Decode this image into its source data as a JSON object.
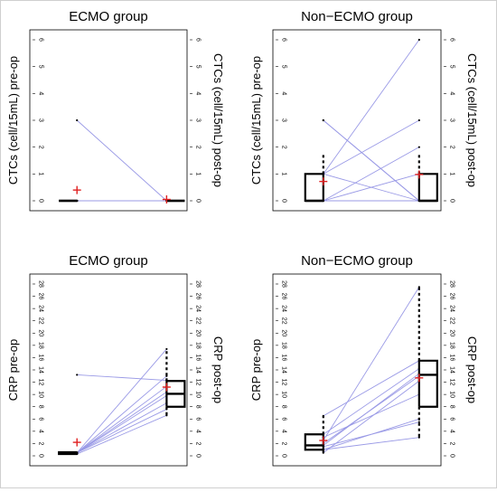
{
  "chart_data": [
    {
      "type": "paired-line",
      "title": "ECMO group",
      "ylabel_left": "CTCs (cell/15mL) pre-op",
      "ylabel_right": "CTCs (cell/15mL) post-op",
      "ylim": [
        0,
        6
      ],
      "yticks": [
        "0",
        "1",
        "2",
        "3",
        "4",
        "5",
        "6"
      ],
      "pairs": [
        [
          3,
          0
        ],
        [
          0,
          0
        ],
        [
          0,
          0
        ],
        [
          0,
          0
        ],
        [
          0,
          0
        ],
        [
          0,
          0
        ],
        [
          0,
          0
        ],
        [
          0,
          0
        ]
      ],
      "mean": {
        "pre": 0.4,
        "post": 0.05
      },
      "box_pre": {
        "min": 0,
        "q1": 0,
        "median": 0,
        "q3": 0,
        "max": 0
      },
      "box_post": {
        "min": 0,
        "q1": 0,
        "median": 0,
        "q3": 0,
        "max": 0
      }
    },
    {
      "type": "paired-line",
      "title": "Non−ECMO group",
      "ylabel_left": "CTCs (cell/15mL) pre-op",
      "ylabel_right": "CTCs (cell/15mL) post-op",
      "ylim": [
        0,
        6
      ],
      "yticks": [
        "0",
        "1",
        "2",
        "3",
        "4",
        "5",
        "6"
      ],
      "pairs": [
        [
          3,
          0
        ],
        [
          3,
          0
        ],
        [
          1,
          3
        ],
        [
          1,
          6
        ],
        [
          0,
          2
        ],
        [
          0,
          1
        ],
        [
          0,
          0
        ],
        [
          1,
          0
        ],
        [
          0,
          0
        ]
      ],
      "mean": {
        "pre": 0.72,
        "post": 0.98
      },
      "box_pre": {
        "min": 0,
        "q1": 0,
        "median": 0,
        "q3": 1,
        "max": 1.75
      },
      "box_post": {
        "min": 0,
        "q1": 0,
        "median": 0,
        "q3": 1,
        "max": 1.75
      }
    },
    {
      "type": "paired-line",
      "title": "ECMO group",
      "ylabel_left": "CRP pre-op",
      "ylabel_right": "CRP post-op",
      "ylim": [
        0,
        28
      ],
      "yticks": [
        "0",
        "2",
        "4",
        "6",
        "8",
        "10",
        "12",
        "14",
        "16",
        "18",
        "20",
        "22",
        "24",
        "26",
        "28"
      ],
      "pairs": [
        [
          13.2,
          12.3
        ],
        [
          0.5,
          17.4
        ],
        [
          0.5,
          13.0
        ],
        [
          0.5,
          11.3
        ],
        [
          0.5,
          10.4
        ],
        [
          0.5,
          9.8
        ],
        [
          0.5,
          8.6
        ],
        [
          0.5,
          7.6
        ],
        [
          0.3,
          6.6
        ]
      ],
      "mean": {
        "pre": 2.2,
        "post": 11.2
      },
      "box_pre": {
        "min": 0.2,
        "q1": 0.3,
        "median": 0.5,
        "q3": 0.6,
        "max": 0.7
      },
      "box_post": {
        "min": 6.6,
        "q1": 8.0,
        "median": 10.1,
        "q3": 12.2,
        "max": 17.4
      }
    },
    {
      "type": "paired-line",
      "title": "Non−ECMO group",
      "ylabel_left": "CRP pre-op",
      "ylabel_right": "CRP post-op",
      "ylim": [
        0,
        28
      ],
      "yticks": [
        "0",
        "2",
        "4",
        "6",
        "8",
        "10",
        "12",
        "14",
        "16",
        "18",
        "20",
        "22",
        "24",
        "26",
        "28"
      ],
      "pairs": [
        [
          2.5,
          27.5
        ],
        [
          6.5,
          15.5
        ],
        [
          3.5,
          14.2
        ],
        [
          1.7,
          13.4
        ],
        [
          2.0,
          13.0
        ],
        [
          0.5,
          12.2
        ],
        [
          3.0,
          10.0
        ],
        [
          1.0,
          6.0
        ],
        [
          1.5,
          5.5
        ],
        [
          1.0,
          3.0
        ]
      ],
      "mean": {
        "pre": 2.5,
        "post": 12.7
      },
      "box_pre": {
        "min": 0.5,
        "q1": 1.0,
        "median": 1.7,
        "q3": 3.5,
        "max": 6.5
      },
      "box_post": {
        "min": 3.0,
        "q1": 8.0,
        "median": 13.2,
        "q3": 15.5,
        "max": 27.5
      }
    }
  ],
  "colors": {
    "pair_line": "#9a9ae6",
    "mean_marker": "#e02020",
    "box": "#000000",
    "point": "#000000"
  }
}
